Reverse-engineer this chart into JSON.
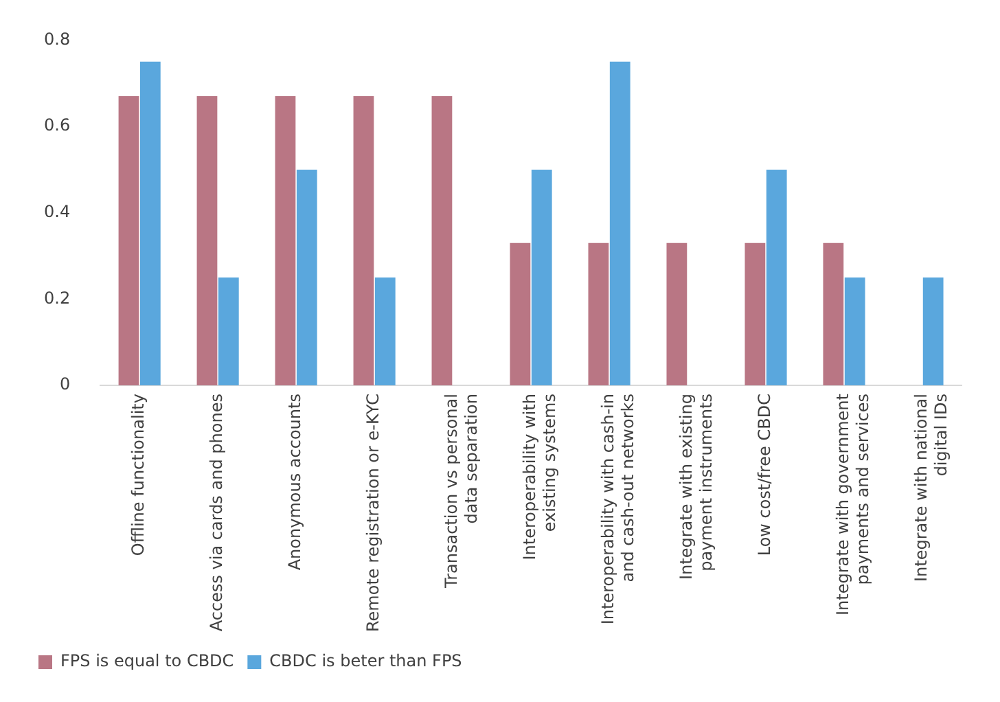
{
  "chart_data": {
    "type": "bar",
    "categories": [
      "Offline functionality",
      "Access via cards and phones",
      "Anonymous accounts",
      "Remote registration or e-KYC",
      "Transaction vs personal data separation",
      "Interoperability with existing systems",
      "Interoperability with cash-in and cash-out networks",
      "Integrate with existing payment instruments",
      "Low cost/free CBDC",
      "Integrate with government payments and services",
      "Integrate with national digital IDs"
    ],
    "series": [
      {
        "name": "FPS is equal to CBDC",
        "color": "#b97684",
        "values": [
          0.67,
          0.67,
          0.67,
          0.67,
          0.67,
          0.33,
          0.33,
          0.33,
          0.33,
          0.33,
          0
        ]
      },
      {
        "name": "CBDC is beter than FPS",
        "color": "#5aa7dd",
        "values": [
          0.75,
          0.25,
          0.5,
          0.25,
          0,
          0.5,
          0.75,
          0,
          0.5,
          0.25,
          0.25
        ]
      }
    ],
    "ylim": [
      0,
      0.8
    ],
    "yticks": [
      0,
      0.2,
      0.4,
      0.6,
      0.8
    ],
    "grid": false,
    "legend": "bottom left"
  }
}
